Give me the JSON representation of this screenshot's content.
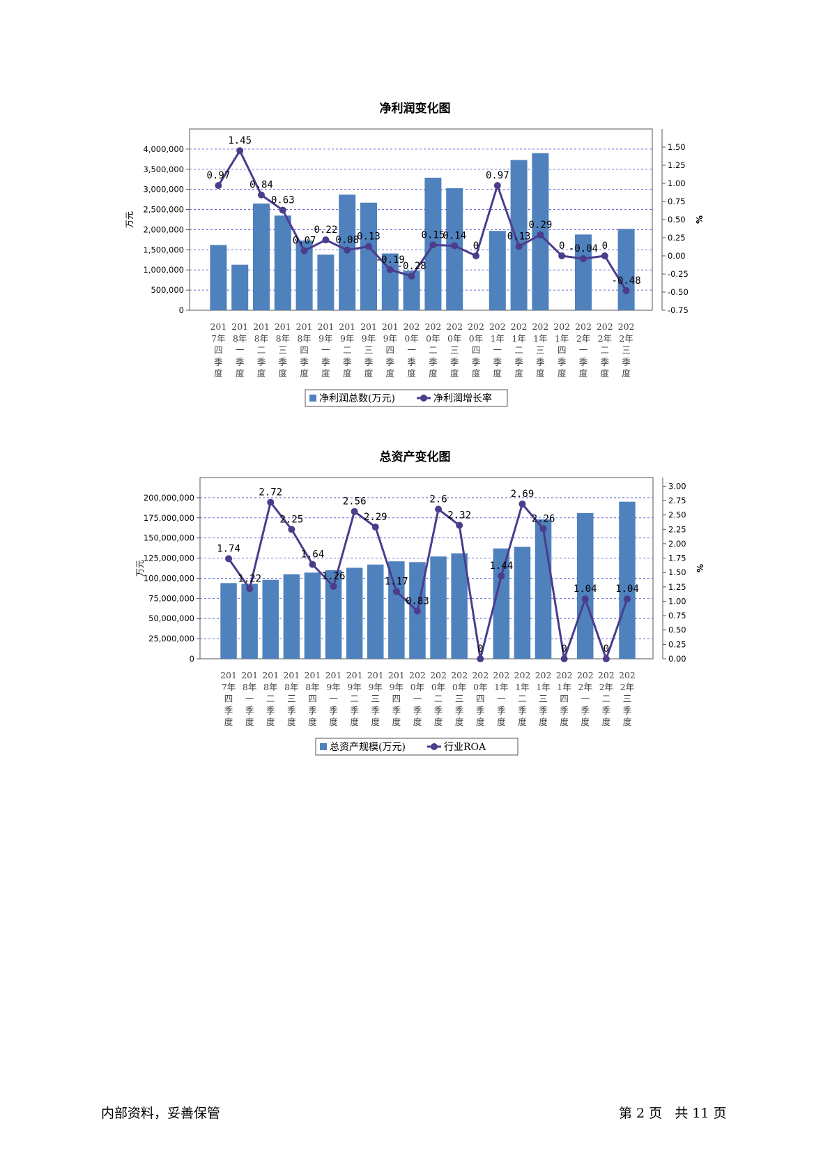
{
  "chart_data": [
    {
      "type": "bar",
      "title": "净利润变化图",
      "categories": [
        "2017年四季度",
        "2018年一季度",
        "2018年二季度",
        "2018年三季度",
        "2018年四季度",
        "2019年一季度",
        "2019年二季度",
        "2019年三季度",
        "2019年四季度",
        "2020年一季度",
        "2020年二季度",
        "2020年三季度",
        "2020年四季度",
        "2021年一季度",
        "2021年二季度",
        "2021年三季度",
        "2021年四季度",
        "2022年一季度",
        "2022年二季度",
        "2022年三季度"
      ],
      "ylabel": "万元",
      "y2label": "%",
      "ylim": [
        0,
        4500000
      ],
      "y2lim": [
        -0.75,
        1.75
      ],
      "yticks": [
        "0",
        "500,000",
        "1,000,000",
        "1,500,000",
        "2,000,000",
        "2,500,000",
        "3,000,000",
        "3,500,000",
        "4,000,000"
      ],
      "y2ticks": [
        "-0.75",
        "-0.50",
        "-0.25",
        "0.00",
        "0.25",
        "0.50",
        "0.75",
        "1.00",
        "1.25",
        "1.50"
      ],
      "series": [
        {
          "name": "净利润总数(万元)",
          "kind": "bar",
          "color": "#4f81bd",
          "values": [
            1620000,
            1130000,
            2650000,
            2350000,
            1730000,
            1380000,
            2870000,
            2670000,
            1410000,
            980000,
            3290000,
            3030000,
            0,
            1970000,
            3730000,
            3900000,
            0,
            1880000,
            0,
            2020000
          ]
        },
        {
          "name": "净利润增长率",
          "kind": "line",
          "color": "#4b3c8c",
          "values": [
            0.97,
            1.45,
            0.84,
            0.63,
            0.07,
            0.22,
            0.08,
            0.13,
            -0.19,
            -0.28,
            0.15,
            0.14,
            0,
            0.97,
            0.13,
            0.29,
            0,
            -0.04,
            0,
            -0.48
          ],
          "labels": [
            "0.97",
            "1.45",
            "0.84",
            "0.63",
            "0.07",
            "0.22",
            "0.08",
            "0.13",
            "-0.19",
            "-0.28",
            "0.15",
            "0.14",
            "0",
            "0.97",
            "0.13",
            "0.29",
            "0",
            "-0.04",
            "0",
            "-0.48"
          ]
        }
      ],
      "legend": "bottom"
    },
    {
      "type": "bar",
      "title": "总资产变化图",
      "categories": [
        "2017年四季度",
        "2018年一季度",
        "2018年二季度",
        "2018年三季度",
        "2018年四季度",
        "2019年一季度",
        "2019年二季度",
        "2019年三季度",
        "2019年四季度",
        "2020年一季度",
        "2020年二季度",
        "2020年三季度",
        "2020年四季度",
        "2021年一季度",
        "2021年二季度",
        "2021年三季度",
        "2021年四季度",
        "2022年一季度",
        "2022年二季度",
        "2022年三季度"
      ],
      "ylabel": "万元",
      "y2label": "%",
      "ylim": [
        0,
        225000000
      ],
      "y2lim": [
        0,
        3.15
      ],
      "yticks": [
        "0",
        "25,000,000",
        "50,000,000",
        "75,000,000",
        "100,000,000",
        "125,000,000",
        "150,000,000",
        "175,000,000",
        "200,000,000"
      ],
      "y2ticks": [
        "0.00",
        "0.25",
        "0.50",
        "0.75",
        "1.00",
        "1.25",
        "1.50",
        "1.75",
        "2.00",
        "2.25",
        "2.50",
        "2.75",
        "3.00"
      ],
      "series": [
        {
          "name": "总资产规模(万元)",
          "kind": "bar",
          "color": "#4f81bd",
          "values": [
            94000000,
            93000000,
            98000000,
            105000000,
            107000000,
            110000000,
            113000000,
            117000000,
            121000000,
            120000000,
            127000000,
            131000000,
            0,
            137000000,
            139000000,
            173000000,
            0,
            181000000,
            0,
            195000000
          ]
        },
        {
          "name": "行业ROA",
          "kind": "line",
          "color": "#4b3c8c",
          "values": [
            1.74,
            1.22,
            2.72,
            2.25,
            1.64,
            1.26,
            2.56,
            2.29,
            1.17,
            0.83,
            2.6,
            2.32,
            0,
            1.44,
            2.69,
            2.26,
            0,
            1.04,
            0,
            1.04
          ],
          "labels": [
            "1.74",
            "1.22",
            "2.72",
            "2.25",
            "1.64",
            "1.26",
            "2.56",
            "2.29",
            "1.17",
            "0.83",
            "2.6",
            "2.32",
            "0",
            "1.44",
            "2.69",
            "2.26",
            "0",
            "1.04",
            "0",
            "1.04"
          ]
        }
      ],
      "legend": "bottom"
    }
  ],
  "footer": {
    "left": "内部资料，妥善保管",
    "right": "第 2 页   共 11 页"
  }
}
